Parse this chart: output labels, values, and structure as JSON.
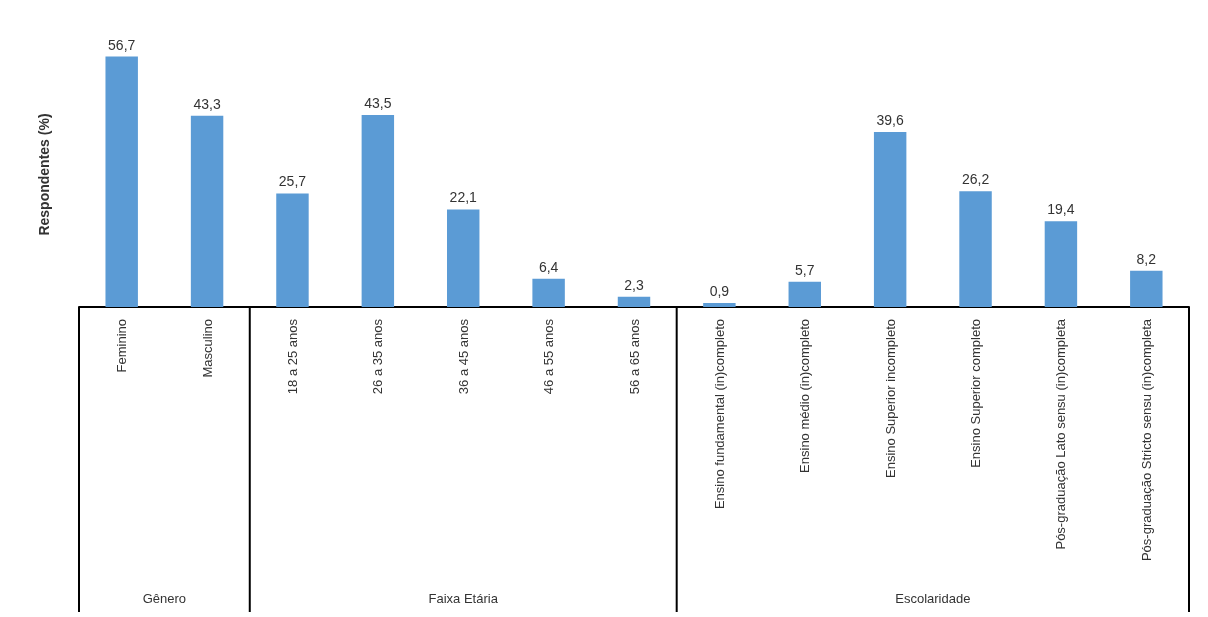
{
  "chart_data": {
    "type": "bar",
    "ylabel": "Respondentes (%)",
    "categories": [
      "Feminino",
      "Masculino",
      "18 a 25 anos",
      "26 a 35 anos",
      "36 a 45 anos",
      "46 a 55 anos",
      "56 a 65 anos",
      "Ensino fundamental (in)completo",
      "Ensino médio (in)completo",
      "Ensino Superior incompleto",
      "Ensino Superior completo",
      "Pós-graduação Lato sensu (in)completa",
      "Pós-graduação Stricto sensu (in)completa"
    ],
    "values": [
      56.7,
      43.3,
      25.7,
      43.5,
      22.1,
      6.4,
      2.3,
      0.9,
      5.7,
      39.6,
      26.2,
      19.4,
      8.2
    ],
    "value_labels": [
      "56,7",
      "43,3",
      "25,7",
      "43,5",
      "22,1",
      "6,4",
      "2,3",
      "0,9",
      "5,7",
      "39,6",
      "26,2",
      "19,4",
      "8,2"
    ],
    "color": "#5b9bd5",
    "annotations": [
      "Gênero",
      "Faixa Etária",
      "Escolaridade"
    ]
  }
}
